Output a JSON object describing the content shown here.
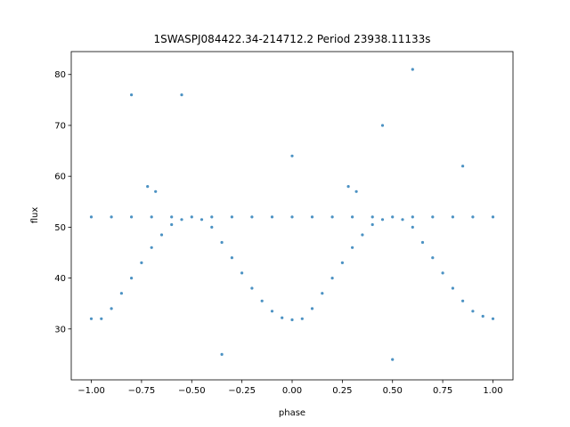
{
  "chart_data": {
    "type": "scatter",
    "title": "1SWASPJ084422.34-214712.2 Period 23938.11133s",
    "xlabel": "phase",
    "ylabel": "flux",
    "xlim": [
      -1.1,
      1.1
    ],
    "ylim": [
      20,
      84.5
    ],
    "grid": false,
    "point_color": "#1f77b4",
    "x_ticks": [
      {
        "value": -1.0,
        "label": "−1.00"
      },
      {
        "value": -0.75,
        "label": "−0.75"
      },
      {
        "value": -0.5,
        "label": "−0.50"
      },
      {
        "value": -0.25,
        "label": "−0.25"
      },
      {
        "value": 0.0,
        "label": "0.00"
      },
      {
        "value": 0.25,
        "label": "0.25"
      },
      {
        "value": 0.5,
        "label": "0.50"
      },
      {
        "value": 0.75,
        "label": "0.75"
      },
      {
        "value": 1.0,
        "label": "1.00"
      }
    ],
    "y_ticks": [
      {
        "value": 30,
        "label": "30"
      },
      {
        "value": 40,
        "label": "40"
      },
      {
        "value": 50,
        "label": "50"
      },
      {
        "value": 60,
        "label": "60"
      },
      {
        "value": 70,
        "label": "70"
      },
      {
        "value": 80,
        "label": "80"
      }
    ],
    "series": [
      {
        "values": [
          {
            "x": -1.0,
            "y": 52
          },
          {
            "x": -0.9,
            "y": 52
          },
          {
            "x": -0.8,
            "y": 52
          },
          {
            "x": -0.7,
            "y": 52
          },
          {
            "x": -0.6,
            "y": 52
          },
          {
            "x": -0.5,
            "y": 52
          },
          {
            "x": -0.4,
            "y": 52
          },
          {
            "x": -0.3,
            "y": 52
          },
          {
            "x": -0.2,
            "y": 52
          },
          {
            "x": -0.1,
            "y": 52
          },
          {
            "x": 0.0,
            "y": 52
          },
          {
            "x": 0.1,
            "y": 52
          },
          {
            "x": 0.2,
            "y": 52
          },
          {
            "x": 0.3,
            "y": 52
          },
          {
            "x": 0.4,
            "y": 52
          },
          {
            "x": 0.5,
            "y": 52
          },
          {
            "x": 0.6,
            "y": 52
          },
          {
            "x": 0.7,
            "y": 52
          },
          {
            "x": 0.8,
            "y": 52
          },
          {
            "x": 0.9,
            "y": 52
          },
          {
            "x": 1.0,
            "y": 52
          },
          {
            "x": -1.0,
            "y": 32
          },
          {
            "x": -0.95,
            "y": 32
          },
          {
            "x": -0.9,
            "y": 34
          },
          {
            "x": -0.85,
            "y": 37
          },
          {
            "x": -0.8,
            "y": 40
          },
          {
            "x": -0.75,
            "y": 43
          },
          {
            "x": -0.7,
            "y": 46
          },
          {
            "x": -0.65,
            "y": 48.5
          },
          {
            "x": -0.6,
            "y": 50.5
          },
          {
            "x": -0.55,
            "y": 51.5
          },
          {
            "x": -0.45,
            "y": 51.5
          },
          {
            "x": -0.4,
            "y": 50
          },
          {
            "x": -0.35,
            "y": 47
          },
          {
            "x": -0.3,
            "y": 44
          },
          {
            "x": -0.25,
            "y": 41
          },
          {
            "x": -0.2,
            "y": 38
          },
          {
            "x": -0.15,
            "y": 35.5
          },
          {
            "x": -0.1,
            "y": 33.5
          },
          {
            "x": -0.05,
            "y": 32.2
          },
          {
            "x": 0.0,
            "y": 31.8
          },
          {
            "x": 0.05,
            "y": 32
          },
          {
            "x": 0.1,
            "y": 34
          },
          {
            "x": 0.15,
            "y": 37
          },
          {
            "x": 0.2,
            "y": 40
          },
          {
            "x": 0.25,
            "y": 43
          },
          {
            "x": 0.3,
            "y": 46
          },
          {
            "x": 0.35,
            "y": 48.5
          },
          {
            "x": 0.4,
            "y": 50.5
          },
          {
            "x": 0.45,
            "y": 51.5
          },
          {
            "x": 0.55,
            "y": 51.5
          },
          {
            "x": 0.6,
            "y": 50
          },
          {
            "x": 0.65,
            "y": 47
          },
          {
            "x": 0.7,
            "y": 44
          },
          {
            "x": 0.75,
            "y": 41
          },
          {
            "x": 0.8,
            "y": 38
          },
          {
            "x": 0.85,
            "y": 35.5
          },
          {
            "x": 0.9,
            "y": 33.5
          },
          {
            "x": 0.95,
            "y": 32.5
          },
          {
            "x": 1.0,
            "y": 32
          },
          {
            "x": -0.72,
            "y": 58
          },
          {
            "x": -0.68,
            "y": 57
          },
          {
            "x": 0.28,
            "y": 58
          },
          {
            "x": 0.32,
            "y": 57
          },
          {
            "x": -0.55,
            "y": 76
          },
          {
            "x": 0.0,
            "y": 64
          },
          {
            "x": 0.45,
            "y": 70
          },
          {
            "x": 0.6,
            "y": 81
          },
          {
            "x": -0.35,
            "y": 25
          },
          {
            "x": 0.5,
            "y": 24
          },
          {
            "x": -0.8,
            "y": 76
          },
          {
            "x": 0.85,
            "y": 62
          }
        ]
      }
    ]
  }
}
